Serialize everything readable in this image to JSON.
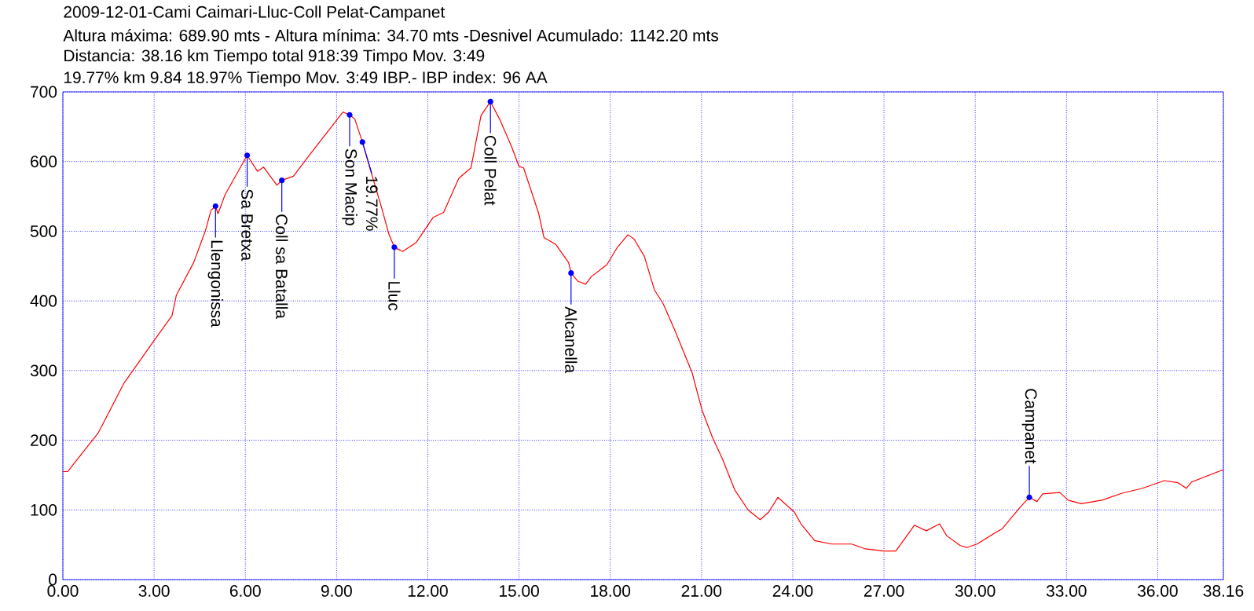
{
  "chart_data": {
    "type": "line",
    "title": "2009-12-01-Cami Caimari-Lluc-Coll Pelat-Campanet",
    "subtitle": "Altura máxima: 689.90 mts - Altura mínima: 34.70 mts -Desnivel Acumulado: 1142.20 mts",
    "annotations": [
      "Distancia: 38.16 km  Tiempo total 918:39 Timpo Mov. 3:49",
      "19.77% km 9.84  18.97%  Tiempo Mov. 3:49 IBP.- IBP index: 96 AA",
      {
        "text": "Llengonissa",
        "x": 5.02,
        "y": 536
      },
      {
        "text": "Sa Bretxa",
        "x": 6.06,
        "y": 609
      },
      {
        "text": "Coll sa Batalla",
        "x": 7.2,
        "y": 573
      },
      {
        "text": "Son Macip",
        "x": 9.43,
        "y": 667
      },
      {
        "text": "19.77%",
        "x": 9.85,
        "y": 628
      },
      {
        "text": "Lluc",
        "x": 10.9,
        "y": 477
      },
      {
        "text": "Coll Pelat",
        "x": 14.06,
        "y": 686
      },
      {
        "text": "Alcanella",
        "x": 16.71,
        "y": 440
      },
      {
        "text": "Campanet",
        "x": 31.78,
        "y": 118
      }
    ],
    "x": [
      0,
      0.16,
      1.17,
      2.01,
      3,
      3.59,
      3.73,
      4.3,
      4.69,
      4.87,
      5.02,
      5.1,
      5.33,
      6.06,
      6.4,
      6.6,
      7.04,
      7.2,
      7.58,
      8.03,
      9.21,
      9.43,
      9.6,
      9.85,
      10.16,
      10.44,
      10.72,
      10.9,
      11.17,
      11.62,
      12.18,
      12.52,
      13.02,
      13.42,
      13.75,
      14.06,
      14.36,
      14.75,
      15.0,
      15.15,
      15.65,
      15.82,
      16.21,
      16.63,
      16.71,
      16.94,
      17.19,
      17.38,
      17.89,
      18.22,
      18.58,
      18.78,
      19.12,
      19.45,
      19.74,
      20.13,
      20.69,
      21.02,
      21.36,
      21.69,
      22.09,
      22.53,
      22.93,
      23.21,
      23.51,
      24.05,
      24.27,
      24.72,
      25.28,
      25.94,
      26.39,
      27.0,
      27.39,
      28.0,
      28.39,
      28.83,
      29.06,
      29.5,
      29.72,
      30.06,
      30.61,
      30.89,
      31.5,
      31.78,
      32.03,
      32.22,
      32.78,
      33.06,
      33.48,
      34.17,
      34.83,
      35.5,
      36.22,
      36.67,
      36.94,
      37.11,
      38.11,
      38.16
    ],
    "values": [
      155,
      155,
      211,
      282,
      343,
      379,
      408,
      455,
      501,
      530,
      536,
      525,
      552,
      609,
      586,
      592,
      566,
      573,
      579,
      605,
      671,
      667,
      661,
      628,
      581,
      540,
      496,
      477,
      471,
      484,
      520,
      527,
      576,
      591,
      666,
      686,
      661,
      622,
      593,
      591,
      525,
      491,
      481,
      455,
      440,
      428,
      424,
      435,
      452,
      476,
      495,
      489,
      464,
      416,
      396,
      357,
      297,
      243,
      204,
      173,
      129,
      100,
      86,
      97,
      118,
      97,
      80,
      56,
      51,
      51,
      44,
      41,
      41,
      78,
      70,
      80,
      63,
      49,
      46,
      51,
      66,
      73,
      105,
      118,
      112,
      123,
      125,
      114,
      109,
      114,
      124,
      131,
      142,
      139,
      131,
      140,
      157,
      157
    ],
    "color": "#ff0000",
    "xlim": [
      0,
      38.16
    ],
    "ylim": [
      0,
      700
    ],
    "xticks": [
      {
        "value": 0,
        "label": "0.00"
      },
      {
        "value": 3,
        "label": "3.00"
      },
      {
        "value": 6,
        "label": "6.00"
      },
      {
        "value": 9,
        "label": "9.00"
      },
      {
        "value": 12,
        "label": "12.00"
      },
      {
        "value": 15,
        "label": "15.00"
      },
      {
        "value": 18,
        "label": "18.00"
      },
      {
        "value": 21,
        "label": "21.00"
      },
      {
        "value": 24,
        "label": "24.00"
      },
      {
        "value": 27,
        "label": "27.00"
      },
      {
        "value": 30,
        "label": "30.00"
      },
      {
        "value": 33,
        "label": "33.00"
      },
      {
        "value": 36,
        "label": "36.00"
      },
      {
        "value": 38.16,
        "label": "38.16"
      }
    ],
    "yticks": [
      0,
      100,
      200,
      300,
      400,
      500,
      600,
      700
    ],
    "grid": true
  }
}
